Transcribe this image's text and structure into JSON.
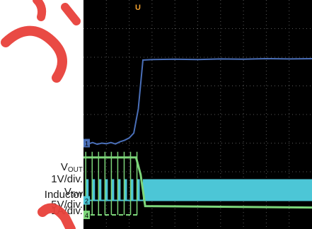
{
  "labels": {
    "vout_main": "V",
    "vout_sub": "OUT",
    "vout_scale": "1V/div.",
    "vsw_main": "V",
    "vsw_sub": "SW",
    "vsw_scale": "5V/div.",
    "inductor": "Inductor",
    "inductor_scale": "1A/div."
  },
  "markers": {
    "trigger": "U",
    "ch1": "1",
    "ch2": "2",
    "ch4": "4"
  },
  "colors": {
    "vout": "#4a6fb8",
    "vsw": "#4cc6d6",
    "inductor": "#7dd67a",
    "grid": "#5a5a5a",
    "trigger": "#f0a030",
    "background": "#000000",
    "watermark": "#e8403a"
  },
  "chart_data": {
    "type": "line",
    "grid": true,
    "series": [
      {
        "name": "VOUT",
        "x": [
          0,
          0.2,
          0.4,
          0.6,
          0.8,
          1.0,
          1.2,
          1.4,
          1.6,
          1.8,
          2.0,
          2.2,
          2.4,
          2.6,
          3.0,
          4.0,
          5.0,
          6.0,
          7.0,
          8.0,
          9.0,
          10.0
        ],
        "y": [
          3.0,
          2.97,
          3.02,
          2.96,
          3.0,
          2.98,
          3.02,
          2.97,
          3.05,
          3.1,
          3.18,
          3.35,
          4.2,
          5.9,
          5.92,
          5.93,
          5.92,
          5.94,
          5.93,
          5.95,
          5.94,
          5.95
        ]
      },
      {
        "name": "VSW",
        "x": [
          0,
          2.6,
          2.6,
          10.0
        ],
        "y": [
          1.0,
          1.0,
          0.85,
          0.85
        ]
      },
      {
        "name": "Inductor",
        "x": [
          0,
          2.3,
          2.5,
          2.7,
          10.0
        ],
        "y": [
          2.5,
          2.5,
          1.9,
          0.8,
          0.75
        ]
      }
    ]
  }
}
